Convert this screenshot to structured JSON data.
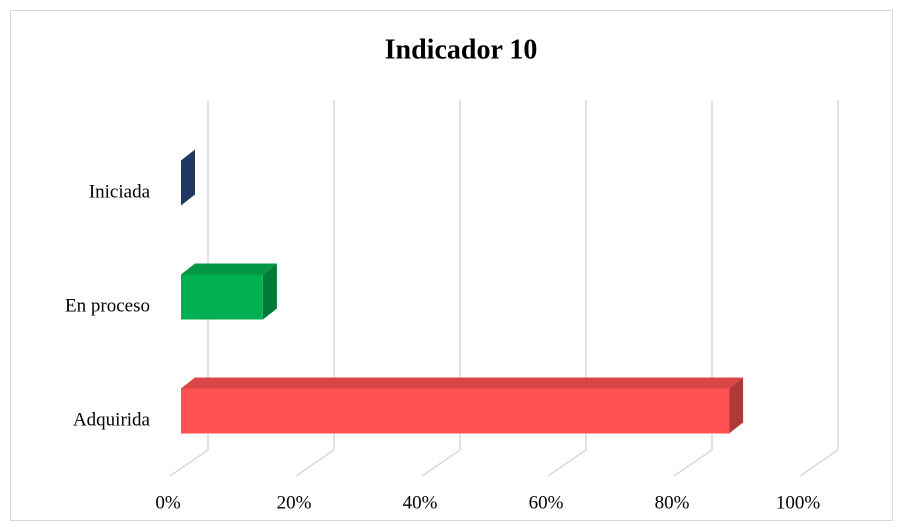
{
  "chart_data": {
    "type": "bar",
    "orientation": "horizontal",
    "title": "Indicador 10",
    "categories": [
      "Iniciada",
      "En proceso",
      "Adquirida"
    ],
    "values": [
      0,
      13,
      87
    ],
    "colors": [
      "#2f4f8f",
      "#00b050",
      "#ff5252"
    ],
    "xlim": [
      0,
      100
    ],
    "xticks": [
      {
        "value": 0,
        "label": "0%"
      },
      {
        "value": 20,
        "label": "20%"
      },
      {
        "value": 40,
        "label": "40%"
      },
      {
        "value": 60,
        "label": "60%"
      },
      {
        "value": 80,
        "label": "80%"
      },
      {
        "value": 100,
        "label": "100%"
      }
    ],
    "grid": true
  }
}
